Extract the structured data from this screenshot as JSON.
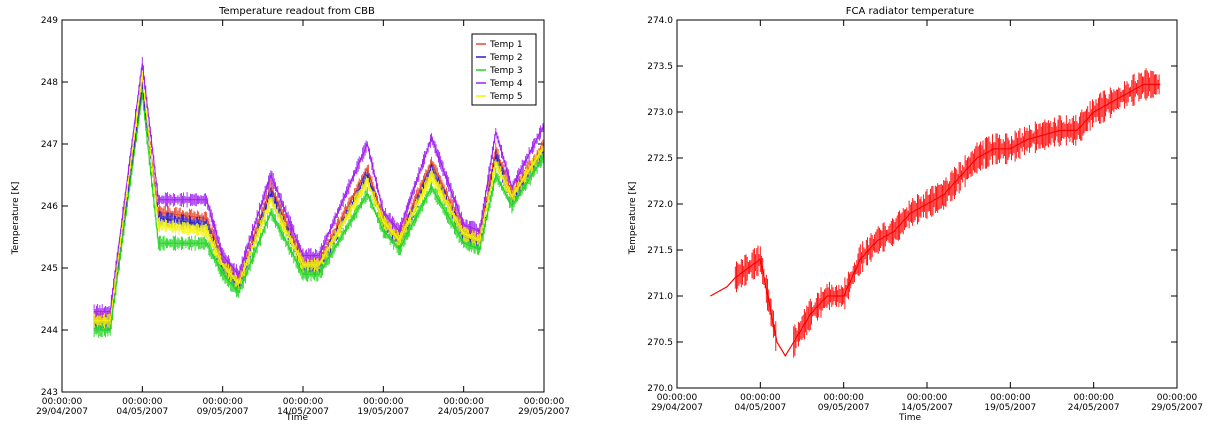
{
  "chart_data": [
    {
      "type": "line",
      "title": "Temperature readout from CBB",
      "xlabel": "Time",
      "ylabel": "Temperature [K]",
      "xticks": [
        {
          "t": "00:00:00",
          "d": "29/04/2007",
          "v": "2007-04-29"
        },
        {
          "t": "00:00:00",
          "d": "04/05/2007",
          "v": "2007-05-04"
        },
        {
          "t": "00:00:00",
          "d": "09/05/2007",
          "v": "2007-05-09"
        },
        {
          "t": "00:00:00",
          "d": "14/05/2007",
          "v": "2007-05-14"
        },
        {
          "t": "00:00:00",
          "d": "19/05/2007",
          "v": "2007-05-19"
        },
        {
          "t": "00:00:00",
          "d": "24/05/2007",
          "v": "2007-05-24"
        },
        {
          "t": "00:00:00",
          "d": "29/05/2007",
          "v": "2007-05-29"
        }
      ],
      "xlim": [
        "2007-04-29",
        "2007-05-29"
      ],
      "ylim": [
        243,
        249
      ],
      "yticks": [
        "243",
        "244",
        "245",
        "246",
        "247",
        "248",
        "249"
      ],
      "legend_position": "top-right",
      "series": [
        {
          "name": "Temp 1",
          "color": "#e8482c",
          "values": [
            [
              "2007-05-01",
              244.2
            ],
            [
              "2007-05-02",
              244.2
            ],
            [
              "2007-05-04",
              248.0
            ],
            [
              "2007-05-05",
              245.9
            ],
            [
              "2007-05-08",
              245.8
            ],
            [
              "2007-05-09",
              245.1
            ],
            [
              "2007-05-10",
              244.8
            ],
            [
              "2007-05-12",
              246.3
            ],
            [
              "2007-05-14",
              245.1
            ],
            [
              "2007-05-15",
              245.1
            ],
            [
              "2007-05-18",
              246.6
            ],
            [
              "2007-05-19",
              245.8
            ],
            [
              "2007-05-20",
              245.5
            ],
            [
              "2007-05-22",
              246.7
            ],
            [
              "2007-05-24",
              245.6
            ],
            [
              "2007-05-25",
              245.5
            ],
            [
              "2007-05-26",
              246.9
            ],
            [
              "2007-05-27",
              246.2
            ],
            [
              "2007-05-29",
              247.0
            ]
          ]
        },
        {
          "name": "Temp 2",
          "color": "#2a1ed2",
          "values": [
            [
              "2007-05-01",
              244.1
            ],
            [
              "2007-05-02",
              244.1
            ],
            [
              "2007-05-04",
              247.9
            ],
            [
              "2007-05-05",
              245.8
            ],
            [
              "2007-05-08",
              245.7
            ],
            [
              "2007-05-09",
              245.0
            ],
            [
              "2007-05-10",
              244.7
            ],
            [
              "2007-05-12",
              246.2
            ],
            [
              "2007-05-14",
              245.0
            ],
            [
              "2007-05-15",
              245.0
            ],
            [
              "2007-05-18",
              246.5
            ],
            [
              "2007-05-19",
              245.7
            ],
            [
              "2007-05-20",
              245.4
            ],
            [
              "2007-05-22",
              246.6
            ],
            [
              "2007-05-24",
              245.5
            ],
            [
              "2007-05-25",
              245.4
            ],
            [
              "2007-05-26",
              246.8
            ],
            [
              "2007-05-27",
              246.1
            ],
            [
              "2007-05-29",
              246.9
            ]
          ]
        },
        {
          "name": "Temp 3",
          "color": "#22d422",
          "values": [
            [
              "2007-05-01",
              244.0
            ],
            [
              "2007-05-02",
              244.0
            ],
            [
              "2007-05-04",
              247.8
            ],
            [
              "2007-05-05",
              245.4
            ],
            [
              "2007-05-08",
              245.4
            ],
            [
              "2007-05-09",
              244.9
            ],
            [
              "2007-05-10",
              244.6
            ],
            [
              "2007-05-12",
              245.9
            ],
            [
              "2007-05-14",
              244.9
            ],
            [
              "2007-05-15",
              244.9
            ],
            [
              "2007-05-18",
              246.2
            ],
            [
              "2007-05-19",
              245.6
            ],
            [
              "2007-05-20",
              245.3
            ],
            [
              "2007-05-22",
              246.3
            ],
            [
              "2007-05-24",
              245.4
            ],
            [
              "2007-05-25",
              245.3
            ],
            [
              "2007-05-26",
              246.5
            ],
            [
              "2007-05-27",
              246.0
            ],
            [
              "2007-05-29",
              246.8
            ]
          ]
        },
        {
          "name": "Temp 4",
          "color": "#a020f0",
          "values": [
            [
              "2007-05-01",
              244.3
            ],
            [
              "2007-05-02",
              244.3
            ],
            [
              "2007-05-04",
              248.3
            ],
            [
              "2007-05-05",
              246.1
            ],
            [
              "2007-05-08",
              246.1
            ],
            [
              "2007-05-09",
              245.2
            ],
            [
              "2007-05-10",
              244.9
            ],
            [
              "2007-05-12",
              246.5
            ],
            [
              "2007-05-14",
              245.2
            ],
            [
              "2007-05-15",
              245.2
            ],
            [
              "2007-05-18",
              247.0
            ],
            [
              "2007-05-19",
              245.9
            ],
            [
              "2007-05-20",
              245.6
            ],
            [
              "2007-05-22",
              247.1
            ],
            [
              "2007-05-24",
              245.7
            ],
            [
              "2007-05-25",
              245.6
            ],
            [
              "2007-05-26",
              247.2
            ],
            [
              "2007-05-27",
              246.3
            ],
            [
              "2007-05-29",
              247.3
            ]
          ]
        },
        {
          "name": "Temp 5",
          "color": "#f4f400",
          "values": [
            [
              "2007-05-01",
              244.15
            ],
            [
              "2007-05-02",
              244.15
            ],
            [
              "2007-05-04",
              248.1
            ],
            [
              "2007-05-05",
              245.7
            ],
            [
              "2007-05-08",
              245.6
            ],
            [
              "2007-05-09",
              245.05
            ],
            [
              "2007-05-10",
              244.75
            ],
            [
              "2007-05-12",
              246.1
            ],
            [
              "2007-05-14",
              245.05
            ],
            [
              "2007-05-15",
              245.05
            ],
            [
              "2007-05-18",
              246.4
            ],
            [
              "2007-05-19",
              245.75
            ],
            [
              "2007-05-20",
              245.45
            ],
            [
              "2007-05-22",
              246.5
            ],
            [
              "2007-05-24",
              245.55
            ],
            [
              "2007-05-25",
              245.45
            ],
            [
              "2007-05-26",
              246.7
            ],
            [
              "2007-05-27",
              246.15
            ],
            [
              "2007-05-29",
              246.95
            ]
          ]
        }
      ]
    },
    {
      "type": "line",
      "title": "FCA radiator temperature",
      "xlabel": "Time",
      "ylabel": "Temperature [K]",
      "xticks": [
        {
          "t": "00:00:00",
          "d": "29/04/2007",
          "v": "2007-04-29"
        },
        {
          "t": "00:00:00",
          "d": "04/05/2007",
          "v": "2007-05-04"
        },
        {
          "t": "00:00:00",
          "d": "09/05/2007",
          "v": "2007-05-09"
        },
        {
          "t": "00:00:00",
          "d": "14/05/2007",
          "v": "2007-05-14"
        },
        {
          "t": "00:00:00",
          "d": "19/05/2007",
          "v": "2007-05-19"
        },
        {
          "t": "00:00:00",
          "d": "24/05/2007",
          "v": "2007-05-24"
        },
        {
          "t": "00:00:00",
          "d": "29/05/2007",
          "v": "2007-05-29"
        }
      ],
      "xlim": [
        "2007-04-29",
        "2007-05-29"
      ],
      "ylim": [
        270.0,
        274.0
      ],
      "yticks": [
        "270.0",
        "270.5",
        "271.0",
        "271.5",
        "272.0",
        "272.5",
        "273.0",
        "273.5",
        "274.0"
      ],
      "series": [
        {
          "color": "#ff0000",
          "values": [
            [
              "2007-05-01",
              271.0
            ],
            [
              "2007-05-01.5",
              271.05
            ],
            [
              "2007-05-02",
              271.1
            ],
            [
              "2007-05-02.5",
              271.2
            ],
            [
              "2007-05-04",
              271.4
            ],
            [
              "2007-05-05",
              270.5
            ],
            [
              "2007-05-05.5",
              270.35
            ],
            [
              "2007-05-06",
              270.5
            ],
            [
              "2007-05-07",
              270.8
            ],
            [
              "2007-05-08",
              271.0
            ],
            [
              "2007-05-09",
              271.0
            ],
            [
              "2007-05-10",
              271.4
            ],
            [
              "2007-05-11",
              271.6
            ],
            [
              "2007-05-12",
              271.7
            ],
            [
              "2007-05-13",
              271.9
            ],
            [
              "2007-05-14",
              272.0
            ],
            [
              "2007-05-15",
              272.1
            ],
            [
              "2007-05-16",
              272.3
            ],
            [
              "2007-05-17",
              272.5
            ],
            [
              "2007-05-18",
              272.6
            ],
            [
              "2007-05-19",
              272.6
            ],
            [
              "2007-05-20",
              272.7
            ],
            [
              "2007-05-21",
              272.75
            ],
            [
              "2007-05-22",
              272.8
            ],
            [
              "2007-05-23",
              272.8
            ],
            [
              "2007-05-24",
              273.0
            ],
            [
              "2007-05-25",
              273.1
            ],
            [
              "2007-05-26",
              273.2
            ],
            [
              "2007-05-27",
              273.3
            ],
            [
              "2007-05-28",
              273.3
            ]
          ]
        }
      ]
    }
  ]
}
